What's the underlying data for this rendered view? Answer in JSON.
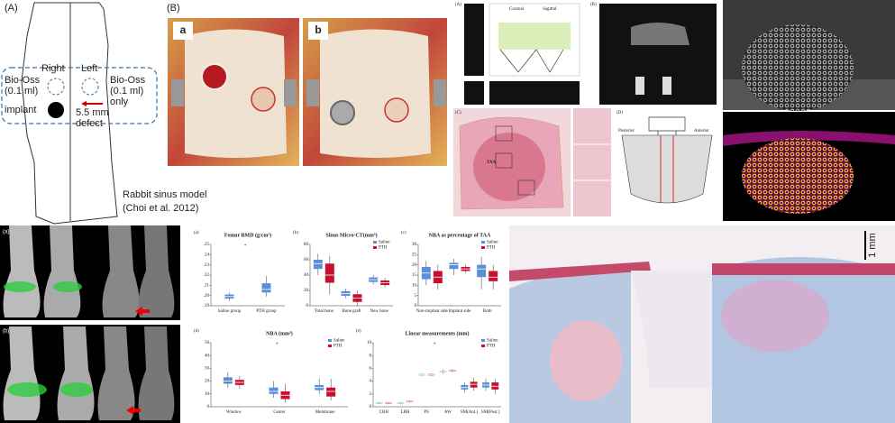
{
  "panels": {
    "sinus_sketch": {
      "label": "(A)",
      "right": "Right",
      "left": "Left",
      "left_note": [
        "Bio-Oss",
        "(0.1 ml)",
        "implant"
      ],
      "right_note": [
        "Bio-Oss",
        "(0.1 ml)",
        "only"
      ],
      "defect": [
        "5.5 mm",
        "defect"
      ],
      "caption": [
        "Rabbit sinus model",
        "(Choi et al. 2012)"
      ]
    },
    "surgery_photos": {
      "label": "(B)",
      "photo_a": "a",
      "photo_b": "b"
    },
    "schematic": {
      "labels": [
        "(A)",
        "(B)",
        "(C)",
        "(D)"
      ],
      "taa": "TAA",
      "coronal": "Coronal",
      "sagittal": "Sagittal",
      "posterior": "Posterior",
      "anterior": "Anterior"
    },
    "xray": {
      "label_a": "(a)",
      "label_b": "(b)"
    },
    "histology": {
      "scale": "1 mm"
    }
  },
  "chart_data": [
    {
      "type": "box",
      "label": "(a)",
      "title": "Femur BMD (g/cm²)",
      "annotation": "*",
      "categories": [
        "Saline group",
        "PTH group"
      ],
      "series": [
        {
          "name": "BMD",
          "color": "#5b8fd6",
          "values": [
            [
              0.195,
              0.197,
              0.199,
              0.201,
              0.203
            ],
            [
              0.199,
              0.203,
              0.206,
              0.212,
              0.219
            ]
          ]
        }
      ],
      "ylim": [
        0.19,
        0.25
      ],
      "yticks": [
        {
          "value": 0.19,
          "label": ".19"
        },
        {
          "value": 0.2,
          "label": ".20"
        },
        {
          "value": 0.21,
          "label": ".21"
        },
        {
          "value": 0.22,
          "label": ".22"
        },
        {
          "value": 0.23,
          "label": ".23"
        },
        {
          "value": 0.24,
          "label": ".24"
        },
        {
          "value": 0.25,
          "label": ".25"
        }
      ],
      "legend": false
    },
    {
      "type": "box",
      "label": "(b)",
      "title": "Sinus Micro-CT(mm³)",
      "categories": [
        "Total bone",
        "Bone graft",
        "New bone"
      ],
      "series": [
        {
          "name": "Saline",
          "color": "#5b8fd6",
          "values": [
            [
              40,
              48,
              55,
              60,
              68
            ],
            [
              10,
              13,
              16,
              19,
              22
            ],
            [
              28,
              31,
              34,
              37,
              40
            ]
          ]
        },
        {
          "name": "PTH",
          "color": "#c8102e",
          "values": [
            [
              15,
              30,
              40,
              55,
              65
            ],
            [
              0,
              5,
              10,
              15,
              20
            ],
            [
              24,
              27,
              30,
              33,
              36
            ]
          ]
        }
      ],
      "ylim": [
        0,
        80
      ],
      "yticks": [
        0,
        20,
        40,
        60,
        80
      ],
      "legend": true
    },
    {
      "type": "box",
      "label": "(c)",
      "title": "NBA as percentage of TAA",
      "categories": [
        "Non-implant side",
        "Implant side",
        "Both"
      ],
      "series": [
        {
          "name": "Saline",
          "color": "#5b8fd6",
          "values": [
            [
              10,
              13,
              16,
              19,
              22
            ],
            [
              15,
              18,
              20,
              21,
              23
            ],
            [
              8,
              14,
              18,
              20,
              24
            ]
          ]
        },
        {
          "name": "PTH",
          "color": "#c8102e",
          "values": [
            [
              8,
              11,
              14,
              17,
              20
            ],
            [
              16,
              17,
              18,
              19,
              20
            ],
            [
              8,
              12,
              14,
              17,
              20
            ]
          ]
        }
      ],
      "ylim": [
        0,
        30
      ],
      "yticks": [
        0,
        5,
        10,
        15,
        20,
        25,
        30
      ],
      "legend": true
    },
    {
      "type": "box",
      "label": "(d)",
      "title": "NBA (mm²)",
      "annotation": "*",
      "categories": [
        "Window",
        "Center",
        "Membrane"
      ],
      "series": [
        {
          "name": "Saline",
          "color": "#5b8fd6",
          "values": [
            [
              15,
              18,
              20,
              23,
              27
            ],
            [
              7,
              10,
              12,
              15,
              20
            ],
            [
              10,
              13,
              15,
              17,
              22
            ]
          ]
        },
        {
          "name": "PTH",
          "color": "#c8102e",
          "values": [
            [
              14,
              17,
              19,
              21,
              24
            ],
            [
              3,
              6,
              9,
              12,
              18
            ],
            [
              5,
              8,
              12,
              15,
              22
            ]
          ]
        }
      ],
      "ylim": [
        0,
        50
      ],
      "yticks": [
        0,
        10,
        20,
        30,
        40,
        50
      ],
      "legend": true
    },
    {
      "type": "box",
      "label": "(e)",
      "title": "Linear measurements (mm)",
      "annotation": "*",
      "categories": [
        "CBH",
        "LBH",
        "PS",
        "AW",
        "SM(Ant.)",
        "SM(Post.)"
      ],
      "series": [
        {
          "name": "Saline",
          "color": "#5b8fd6",
          "values": [
            [
              0.4,
              0.5,
              0.6,
              0.7,
              0.8
            ],
            [
              0.4,
              0.5,
              0.6,
              0.7,
              0.8
            ],
            [
              4.8,
              4.9,
              5,
              5.1,
              5.2
            ],
            [
              5.2,
              5.4,
              5.5,
              5.6,
              5.8
            ],
            [
              2.2,
              2.7,
              3,
              3.4,
              3.8
            ],
            [
              2.5,
              3,
              3.4,
              3.8,
              4.4
            ]
          ]
        },
        {
          "name": "PTH",
          "color": "#c8102e",
          "values": [
            [
              0.4,
              0.5,
              0.6,
              0.7,
              0.8
            ],
            [
              0.6,
              0.7,
              0.8,
              0.9,
              1
            ],
            [
              4.8,
              4.9,
              5,
              5.1,
              5.2
            ],
            [
              5.4,
              5.5,
              5.6,
              5.7,
              5.9
            ],
            [
              2.5,
              3,
              3.5,
              3.9,
              4.5
            ],
            [
              2,
              2.7,
              3.2,
              3.8,
              4.3
            ]
          ]
        }
      ],
      "ylim": [
        0,
        10
      ],
      "yticks": [
        0,
        2,
        4,
        6,
        8,
        10
      ],
      "legend": true
    }
  ]
}
